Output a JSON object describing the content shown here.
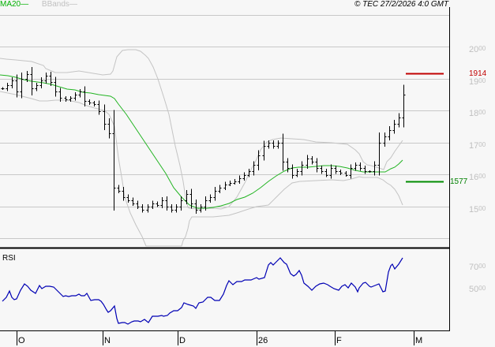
{
  "legend": {
    "ma_label": "MA20",
    "ma_line": "—",
    "bb_label": "BBands",
    "bb_line": "—"
  },
  "copyright": "© TEC 27/2/2026 4:0 GMT",
  "price_axis": [
    {
      "main": "20",
      "sup": "00"
    },
    {
      "main": "19",
      "sup": "00"
    },
    {
      "main": "18",
      "sup": "00"
    },
    {
      "main": "17",
      "sup": "00"
    },
    {
      "main": "16",
      "sup": "00"
    },
    {
      "main": "15",
      "sup": "00"
    }
  ],
  "levels": {
    "resistance": {
      "value": "1914",
      "color": "#c00000"
    },
    "support": {
      "value": "1577",
      "color": "#008000"
    }
  },
  "rsi": {
    "title": "RSI",
    "axis": [
      {
        "main": "70",
        "sup": "00"
      },
      {
        "main": "50",
        "sup": "00"
      }
    ]
  },
  "x_axis": [
    "O",
    "N",
    "D",
    "26",
    "F",
    "M"
  ],
  "colors": {
    "ma": "#00b000",
    "bbands": "#c0c0c0",
    "rsi": "#0000b0",
    "bars": "#000000",
    "grid": "#c8c8c8"
  },
  "chart_data": [
    {
      "type": "ohlc",
      "title": "Price with MA20 and Bollinger Bands",
      "x_ticks": [
        "O",
        "N",
        "D",
        "26",
        "F",
        "M"
      ],
      "ylim": [
        1450,
        2050
      ],
      "y_ticks": [
        1500,
        1600,
        1700,
        1800,
        1900,
        2000
      ],
      "grid": true,
      "annotations": [
        {
          "type": "hline",
          "label": "1914",
          "value": 1914,
          "color": "#c00000"
        },
        {
          "type": "hline",
          "label": "1577",
          "value": 1577,
          "color": "#008000"
        }
      ],
      "series": [
        {
          "name": "Close",
          "values": [
            1870,
            1880,
            1895,
            1860,
            1900,
            1915,
            1870,
            1880,
            1895,
            1910,
            1890,
            1860,
            1840,
            1835,
            1840,
            1850,
            1860,
            1830,
            1825,
            1820,
            1800,
            1760,
            1730,
            1560,
            1550,
            1530,
            1520,
            1510,
            1500,
            1490,
            1500,
            1510,
            1505,
            1520,
            1500,
            1490,
            1500,
            1520,
            1540,
            1510,
            1490,
            1500,
            1520,
            1530,
            1550,
            1560,
            1570,
            1575,
            1580,
            1590,
            1600,
            1610,
            1630,
            1660,
            1690,
            1700,
            1690,
            1700,
            1640,
            1620,
            1600,
            1610,
            1630,
            1650,
            1640,
            1620,
            1610,
            1600,
            1620,
            1610,
            1605,
            1600,
            1620,
            1630,
            1620,
            1610,
            1610,
            1630,
            1700,
            1720,
            1740,
            1760,
            1780,
            1850
          ]
        },
        {
          "name": "MA20",
          "values": [
            1890,
            1885,
            1880,
            1878,
            1875,
            1870,
            1865,
            1860,
            1855,
            1852,
            1848,
            1840,
            1830,
            1800,
            1760,
            1720,
            1680,
            1640,
            1600,
            1560,
            1520,
            1505,
            1500,
            1505,
            1520,
            1540,
            1560,
            1580,
            1600,
            1620,
            1640,
            1645,
            1650,
            1648,
            1645,
            1640,
            1635,
            1630,
            1640,
            1655
          ]
        },
        {
          "name": "BB Upper",
          "values": [
            1970,
            1960,
            1955,
            1930,
            1920,
            1915,
            1925,
            1920,
            1950,
            2020,
            2040,
            2000,
            1880,
            1760,
            1640,
            1590,
            1590,
            1610,
            1650,
            1700,
            1720,
            1720,
            1710,
            1705,
            1700,
            1690,
            1660,
            1640,
            1640,
            1590
          ]
        },
        {
          "name": "BB Lower",
          "values": [
            1840,
            1830,
            1820,
            1830,
            1800,
            1760,
            1720,
            1700,
            1640,
            1520,
            1460,
            1440,
            1450,
            1500,
            1500,
            1500,
            1510,
            1530,
            1550,
            1560,
            1570,
            1570,
            1560,
            1560,
            1550,
            1540,
            1500
          ]
        }
      ]
    },
    {
      "type": "line",
      "title": "RSI",
      "x_ticks": [
        "O",
        "N",
        "D",
        "26",
        "F",
        "M"
      ],
      "y_ticks": [
        50,
        70
      ],
      "ylim": [
        20,
        80
      ],
      "series": [
        {
          "name": "RSI",
          "values": [
            57,
            60,
            64,
            58,
            57,
            63,
            68,
            64,
            62,
            68,
            67,
            66,
            64,
            62,
            61,
            62,
            61,
            62,
            63,
            61,
            60,
            60,
            59,
            54,
            52,
            54,
            36,
            37,
            36,
            37,
            37,
            38,
            37,
            40,
            40,
            41,
            43,
            46,
            45,
            44,
            48,
            49,
            52,
            51,
            55,
            60,
            61,
            59,
            60,
            61,
            62,
            60,
            76,
            74,
            75,
            77,
            75,
            68,
            67,
            70,
            63,
            61,
            60,
            62,
            61,
            62,
            60,
            61,
            59,
            61,
            60,
            59,
            62,
            61,
            62,
            60,
            72,
            73,
            74,
            76,
            79
          ]
        }
      ]
    }
  ]
}
